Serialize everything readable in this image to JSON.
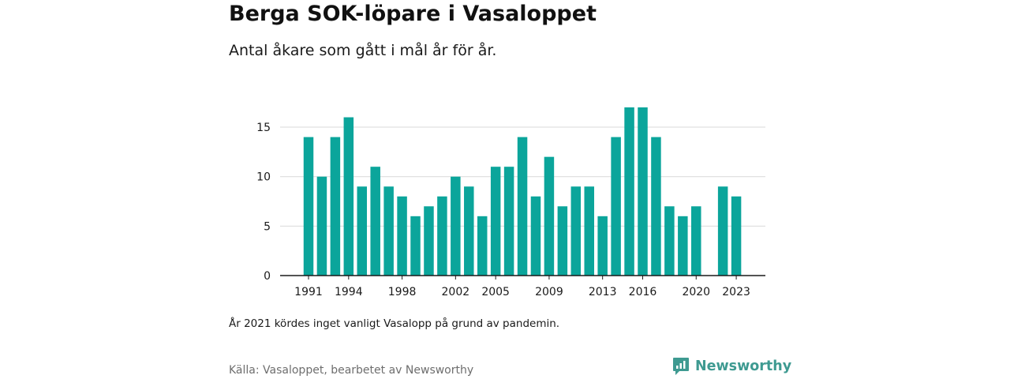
{
  "title": "Berga SOK-löpare i Vasaloppet",
  "subtitle": "Antal åkare som gått i mål år för år.",
  "note": "År 2021 kördes inget vanligt Vasalopp på grund av pandemin.",
  "source": "Källa: Vasaloppet, bearbetet av Newsworthy",
  "brand": {
    "name": "Newsworthy",
    "icon": "newsworthy-logo-icon"
  },
  "colors": {
    "bar": "#0ba59b",
    "grid": "#d9d9d9",
    "axis": "#1a1a1a",
    "brand": "#3e9a91"
  },
  "chart_data": {
    "type": "bar",
    "categories": [
      1991,
      1992,
      1993,
      1994,
      1995,
      1996,
      1997,
      1998,
      1999,
      2000,
      2001,
      2002,
      2003,
      2004,
      2005,
      2006,
      2007,
      2008,
      2009,
      2010,
      2011,
      2012,
      2013,
      2014,
      2015,
      2016,
      2017,
      2018,
      2019,
      2020,
      2021,
      2022,
      2023
    ],
    "values": [
      14,
      10,
      14,
      16,
      9,
      11,
      9,
      8,
      6,
      7,
      8,
      10,
      9,
      6,
      11,
      11,
      14,
      8,
      12,
      7,
      9,
      9,
      6,
      14,
      17,
      17,
      14,
      7,
      6,
      7,
      null,
      9,
      8
    ],
    "x_tick_labels": [
      "1991",
      "1994",
      "1998",
      "2002",
      "2005",
      "2009",
      "2013",
      "2016",
      "2020",
      "2023"
    ],
    "y_ticks": [
      0,
      5,
      10,
      15
    ],
    "ylim": [
      0,
      17
    ],
    "xlabel": "",
    "ylabel": "",
    "grid": "horizontal",
    "legend": "none"
  }
}
